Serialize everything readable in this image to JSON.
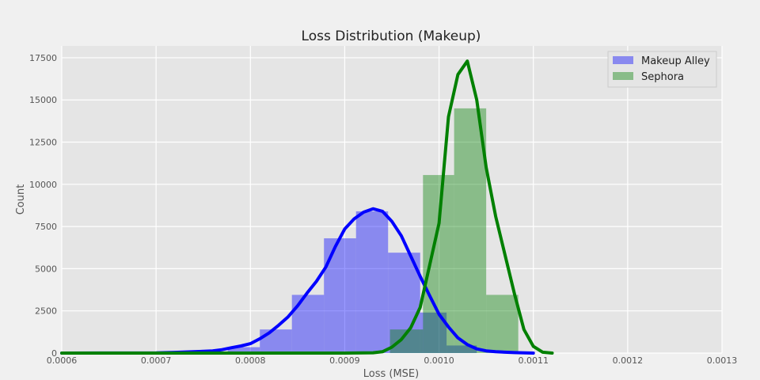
{
  "chart_data": {
    "type": "bar",
    "title": "Loss Distribution (Makeup)",
    "xlabel": "Loss (MSE)",
    "ylabel": "Count",
    "xlim": [
      0.0006,
      0.0013
    ],
    "ylim": [
      0,
      18200
    ],
    "xticks": [
      "0.0006",
      "0.0007",
      "0.0008",
      "0.0009",
      "0.0010",
      "0.0011",
      "0.0012",
      "0.0013"
    ],
    "yticks": [
      "0",
      "2500",
      "5000",
      "7500",
      "10000",
      "12500",
      "15000",
      "17500"
    ],
    "grid": true,
    "legend_position": "top-right",
    "series": [
      {
        "name": "Makeup Alley",
        "color": "#0000ff",
        "hist_bins": [
          {
            "x0": 0.000776,
            "x1": 0.00081,
            "count": 350
          },
          {
            "x0": 0.00081,
            "x1": 0.000844,
            "count": 1400
          },
          {
            "x0": 0.000844,
            "x1": 0.000878,
            "count": 3450
          },
          {
            "x0": 0.000878,
            "x1": 0.000912,
            "count": 6800
          },
          {
            "x0": 0.000912,
            "x1": 0.000946,
            "count": 8400
          },
          {
            "x0": 0.000946,
            "x1": 0.00098,
            "count": 5950
          },
          {
            "x0": 0.00098,
            "x1": 0.001008,
            "count": 2400
          },
          {
            "x0": 0.001008,
            "x1": 0.00104,
            "count": 450
          }
        ],
        "kde": [
          [
            0.0006,
            0
          ],
          [
            0.0007,
            10
          ],
          [
            0.00072,
            40
          ],
          [
            0.00074,
            80
          ],
          [
            0.00076,
            130
          ],
          [
            0.00077,
            200
          ],
          [
            0.00078,
            320
          ],
          [
            0.00079,
            420
          ],
          [
            0.0008,
            560
          ],
          [
            0.00081,
            850
          ],
          [
            0.00082,
            1200
          ],
          [
            0.00083,
            1650
          ],
          [
            0.00084,
            2150
          ],
          [
            0.00085,
            2800
          ],
          [
            0.00086,
            3550
          ],
          [
            0.00087,
            4250
          ],
          [
            0.00088,
            5100
          ],
          [
            0.00089,
            6300
          ],
          [
            0.0009,
            7350
          ],
          [
            0.00091,
            7950
          ],
          [
            0.00092,
            8350
          ],
          [
            0.00093,
            8550
          ],
          [
            0.00094,
            8400
          ],
          [
            0.00095,
            7800
          ],
          [
            0.00096,
            6950
          ],
          [
            0.00097,
            5750
          ],
          [
            0.00098,
            4550
          ],
          [
            0.00099,
            3400
          ],
          [
            0.001,
            2300
          ],
          [
            0.00101,
            1550
          ],
          [
            0.00102,
            900
          ],
          [
            0.00103,
            500
          ],
          [
            0.00104,
            250
          ],
          [
            0.00105,
            130
          ],
          [
            0.00106,
            80
          ],
          [
            0.00108,
            30
          ],
          [
            0.0011,
            0
          ]
        ]
      },
      {
        "name": "Sephora",
        "color": "#008000",
        "hist_bins": [
          {
            "x0": 0.000948,
            "x1": 0.000983,
            "count": 1400
          },
          {
            "x0": 0.000983,
            "x1": 0.001016,
            "count": 10550
          },
          {
            "x0": 0.001016,
            "x1": 0.00105,
            "count": 14500
          },
          {
            "x0": 0.00105,
            "x1": 0.001084,
            "count": 3450
          }
        ],
        "kde": [
          [
            0.0006,
            0
          ],
          [
            0.0009,
            0
          ],
          [
            0.00093,
            20
          ],
          [
            0.00094,
            80
          ],
          [
            0.00095,
            350
          ],
          [
            0.00096,
            800
          ],
          [
            0.00097,
            1500
          ],
          [
            0.00098,
            2700
          ],
          [
            0.00099,
            5200
          ],
          [
            0.001,
            7700
          ],
          [
            0.00101,
            14000
          ],
          [
            0.00102,
            16500
          ],
          [
            0.00103,
            17300
          ],
          [
            0.00104,
            15000
          ],
          [
            0.00105,
            11000
          ],
          [
            0.00106,
            8100
          ],
          [
            0.00107,
            5800
          ],
          [
            0.00108,
            3500
          ],
          [
            0.00109,
            1400
          ],
          [
            0.0011,
            400
          ],
          [
            0.00111,
            50
          ],
          [
            0.00112,
            0
          ]
        ]
      }
    ]
  }
}
